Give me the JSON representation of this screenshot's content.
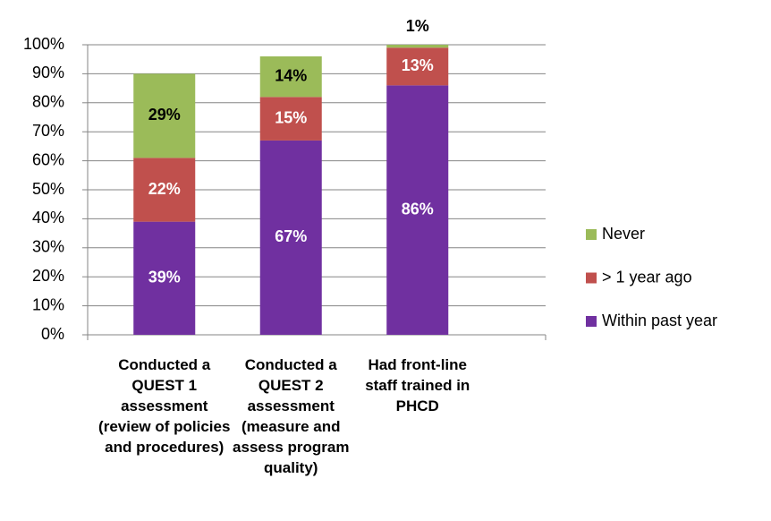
{
  "chart_data": {
    "type": "stacked_bar",
    "categories": [
      "Conducted a QUEST 1 assessment (review of policies and procedures)",
      "Conducted a QUEST 2 assessment (measure and assess program quality)",
      "Had front-line staff trained in PHCD"
    ],
    "series": [
      {
        "name": "Within past year",
        "color": "#7030a0",
        "label_color": "#ffffff",
        "values": [
          39,
          67,
          86
        ],
        "value_labels": [
          "39%",
          "67%",
          "86%"
        ]
      },
      {
        "name": "> 1 year ago",
        "color": "#c0504d",
        "label_color": "#ffffff",
        "values": [
          22,
          15,
          13
        ],
        "value_labels": [
          "22%",
          "15%",
          "13%"
        ]
      },
      {
        "name": "Never",
        "color": "#9bbb59",
        "label_color": "#000000",
        "values": [
          29,
          14,
          1
        ],
        "value_labels": [
          "29%",
          "14%",
          "1%"
        ]
      }
    ],
    "ylim": [
      0,
      100
    ],
    "yticks": [
      {
        "value": 0,
        "label": "0%"
      },
      {
        "value": 10,
        "label": "10%"
      },
      {
        "value": 20,
        "label": "20%"
      },
      {
        "value": 30,
        "label": "30%"
      },
      {
        "value": 40,
        "label": "40%"
      },
      {
        "value": 50,
        "label": "50%"
      },
      {
        "value": 60,
        "label": "60%"
      },
      {
        "value": 70,
        "label": "70%"
      },
      {
        "value": 80,
        "label": "80%"
      },
      {
        "value": 90,
        "label": "90%"
      },
      {
        "value": 100,
        "label": "100%"
      }
    ],
    "grid": true,
    "legend": "right"
  }
}
